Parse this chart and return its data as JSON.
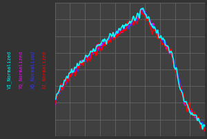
{
  "background_color": "#333333",
  "plot_bg_color": "#404040",
  "grid_color": "#666666",
  "legend_labels": [
    "VI_Normalized",
    "YQ_Normalized",
    "XQ_Normalized",
    "XI_Normalized"
  ],
  "legend_colors": [
    "#00ffff",
    "#ff00ff",
    "#3333ff",
    "#ff0000"
  ],
  "line_width": 1.2,
  "n_points": 600,
  "legend_fontsize": 5.0
}
